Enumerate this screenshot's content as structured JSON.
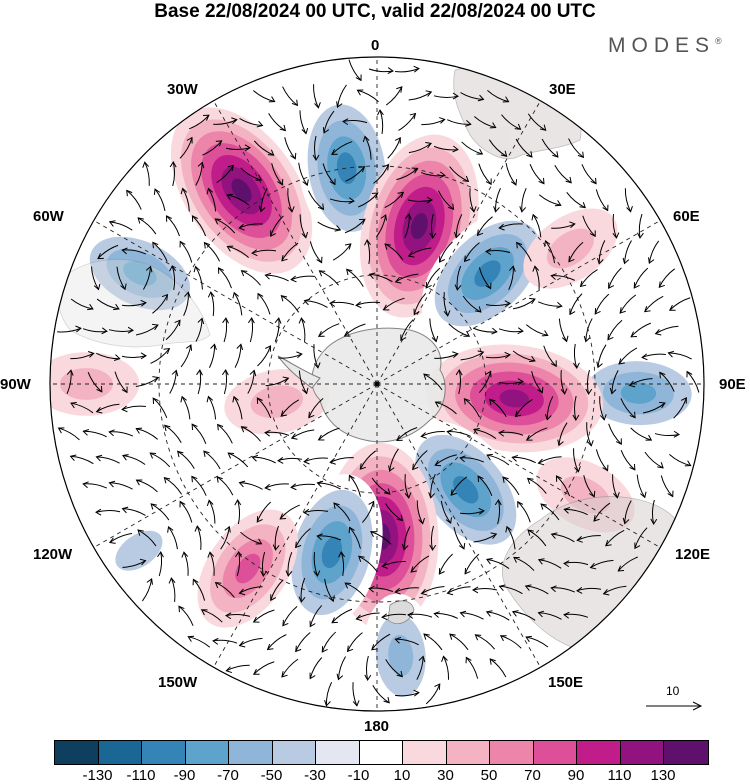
{
  "title": "Base 22/08/2024 00 UTC, valid 22/08/2024 00 UTC",
  "logo": "MODES",
  "logo_mark": "®",
  "longitude_labels": {
    "l0": "0",
    "l30e": "30E",
    "l60e": "60E",
    "l90e": "90E",
    "l120e": "120E",
    "l150e": "150E",
    "l180": "180",
    "l150w": "150W",
    "l120w": "120W",
    "l90w": "90W",
    "l60w": "60W",
    "l30w": "30W"
  },
  "reference_vector": {
    "label": "10"
  },
  "colorbar": {
    "colors": [
      "#0f3f5f",
      "#1a6796",
      "#3484b8",
      "#5ea3cc",
      "#8fb6d8",
      "#b9cbe2",
      "#e4e6f1",
      "#ffffff",
      "#f9d8de",
      "#f3b3c3",
      "#ec85a9",
      "#dd4f98",
      "#c11d8a",
      "#921380",
      "#5f0f6c"
    ],
    "ticks": [
      "-130",
      "-110",
      "-90",
      "-70",
      "-50",
      "-30",
      "-10",
      "10",
      "30",
      "50",
      "70",
      "90",
      "110",
      "130"
    ]
  },
  "anomaly_centers": [
    {
      "id": "c1",
      "value": 130,
      "lon": -35,
      "lat": -25
    },
    {
      "id": "c2",
      "value": -100,
      "lon": -8,
      "lat": -30
    },
    {
      "id": "c3",
      "value": 130,
      "lon": 15,
      "lat": -45
    },
    {
      "id": "c4",
      "value": -100,
      "lon": 45,
      "lat": -47
    },
    {
      "id": "c5",
      "value": 40,
      "lon": 55,
      "lat": -25
    },
    {
      "id": "c6",
      "value": -80,
      "lon": 92,
      "lat": -18
    },
    {
      "id": "c7",
      "value": 120,
      "lon": 96,
      "lat": -52
    },
    {
      "id": "c8",
      "value": -100,
      "lon": 140,
      "lat": -52
    },
    {
      "id": "c9",
      "value": 40,
      "lon": 118,
      "lat": -25
    },
    {
      "id": "c10",
      "value": 130,
      "lon": 178,
      "lat": -48
    },
    {
      "id": "c11",
      "value": -100,
      "lon": -165,
      "lat": -42
    },
    {
      "id": "c12",
      "value": 70,
      "lon": -145,
      "lat": -28
    },
    {
      "id": "c13",
      "value": -80,
      "lon": -65,
      "lat": -18
    },
    {
      "id": "c14",
      "value": 40,
      "lon": -90,
      "lat": -10
    },
    {
      "id": "c15",
      "value": -40,
      "lon": -125,
      "lat": -10
    },
    {
      "id": "c16",
      "value": -60,
      "lon": 175,
      "lat": -15
    },
    {
      "id": "c17",
      "value": 40,
      "lon": -100,
      "lat": -62
    }
  ]
}
